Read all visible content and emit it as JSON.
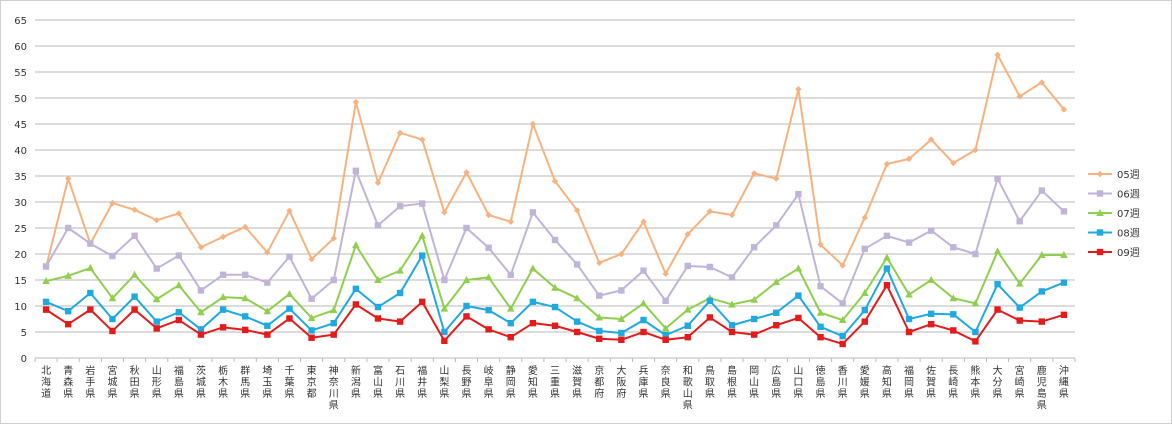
{
  "chart_data": {
    "type": "line",
    "title": "",
    "xlabel": "",
    "ylabel": "",
    "ylim": [
      0,
      65
    ],
    "yticks": [
      0,
      5,
      10,
      15,
      20,
      25,
      30,
      35,
      40,
      45,
      50,
      55,
      60,
      65
    ],
    "grid": "horizontal",
    "legend_position": "right",
    "categories": [
      "北海道",
      "青森県",
      "岩手県",
      "宮城県",
      "秋田県",
      "山形県",
      "福島県",
      "茨城県",
      "栃木県",
      "群馬県",
      "埼玉県",
      "千葉県",
      "東京都",
      "神奈川県",
      "新潟県",
      "富山県",
      "石川県",
      "福井県",
      "山梨県",
      "長野県",
      "岐阜県",
      "静岡県",
      "愛知県",
      "三重県",
      "滋賀県",
      "京都府",
      "大阪府",
      "兵庫県",
      "奈良県",
      "和歌山県",
      "鳥取県",
      "島根県",
      "岡山県",
      "広島県",
      "山口県",
      "徳島県",
      "香川県",
      "愛媛県",
      "高知県",
      "福岡県",
      "佐賀県",
      "長崎県",
      "熊本県",
      "大分県",
      "宮崎県",
      "鹿児島県",
      "沖縄県"
    ],
    "series": [
      {
        "name": "05週",
        "color": "#f7b27f",
        "marker": "diamond",
        "values": [
          17.5,
          34.5,
          22.0,
          29.8,
          28.5,
          26.5,
          27.8,
          21.3,
          23.3,
          25.2,
          20.3,
          28.3,
          19.0,
          23.0,
          49.2,
          33.7,
          43.3,
          42.0,
          28.0,
          35.7,
          27.5,
          26.2,
          45.0,
          34.0,
          28.4,
          18.3,
          20.0,
          26.2,
          16.2,
          23.8,
          28.2,
          27.5,
          35.5,
          34.5,
          51.7,
          21.8,
          17.8,
          27.0,
          37.3,
          38.3,
          42.0,
          37.5,
          40.0,
          58.3,
          50.3,
          53.0,
          47.8
        ]
      },
      {
        "name": "06週",
        "color": "#c0b4d8",
        "marker": "square",
        "values": [
          17.6,
          25.0,
          22.0,
          19.6,
          23.5,
          17.2,
          19.7,
          13.0,
          16.0,
          16.0,
          14.5,
          19.5,
          11.4,
          15.0,
          36.0,
          25.5,
          29.2,
          29.7,
          15.0,
          25.0,
          21.2,
          16.0,
          28.0,
          22.7,
          18.0,
          12.0,
          13.0,
          16.8,
          11.0,
          17.7,
          17.5,
          15.5,
          21.3,
          25.5,
          31.5,
          13.8,
          10.5,
          21.0,
          23.5,
          22.2,
          24.5,
          21.3,
          20.0,
          34.5,
          26.3,
          32.2,
          28.2
        ]
      },
      {
        "name": "07週",
        "color": "#8fcf4e",
        "marker": "triangle",
        "values": [
          14.8,
          15.8,
          17.3,
          11.5,
          16.0,
          11.3,
          14.0,
          8.8,
          11.7,
          11.5,
          9.0,
          12.3,
          7.7,
          9.2,
          21.7,
          15.0,
          16.8,
          23.5,
          9.5,
          15.0,
          15.5,
          9.5,
          17.2,
          13.5,
          11.5,
          7.8,
          7.5,
          10.5,
          5.7,
          9.3,
          11.5,
          10.3,
          11.2,
          14.6,
          17.2,
          8.7,
          7.3,
          12.5,
          19.3,
          12.2,
          15.0,
          11.5,
          10.5,
          20.5,
          14.3,
          19.8,
          19.8
        ]
      },
      {
        "name": "08週",
        "color": "#1fa9e0",
        "marker": "square",
        "values": [
          10.8,
          9.0,
          12.5,
          7.5,
          11.8,
          7.0,
          8.8,
          5.5,
          9.3,
          8.0,
          6.2,
          9.5,
          5.3,
          6.7,
          13.3,
          9.8,
          12.5,
          19.7,
          5.0,
          10.0,
          9.2,
          6.7,
          10.8,
          9.8,
          7.0,
          5.2,
          4.8,
          7.3,
          4.4,
          6.2,
          11.0,
          6.3,
          7.5,
          8.7,
          12.0,
          6.0,
          4.2,
          9.2,
          17.2,
          7.5,
          8.5,
          8.4,
          5.0,
          14.2,
          9.7,
          12.8,
          14.5
        ]
      },
      {
        "name": "09週",
        "color": "#e31b1b",
        "marker": "square",
        "values": [
          9.3,
          6.5,
          9.3,
          5.2,
          9.3,
          5.7,
          7.3,
          4.5,
          5.9,
          5.4,
          4.5,
          7.6,
          3.9,
          4.5,
          10.3,
          7.6,
          7.0,
          10.8,
          3.3,
          8.0,
          5.5,
          4.0,
          6.7,
          6.2,
          5.0,
          3.7,
          3.5,
          5.0,
          3.5,
          4.0,
          7.8,
          5.0,
          4.5,
          6.3,
          7.7,
          4.0,
          2.7,
          7.0,
          14.0,
          5.0,
          6.5,
          5.3,
          3.2,
          9.3,
          7.2,
          7.0,
          8.3
        ]
      }
    ]
  }
}
